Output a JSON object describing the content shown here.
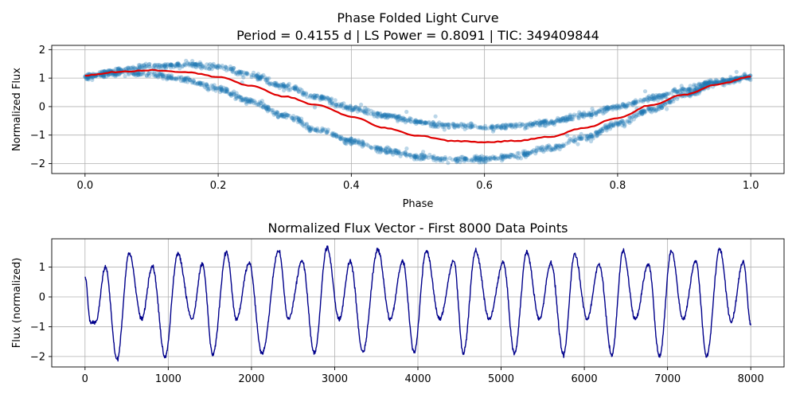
{
  "chart_data": [
    {
      "type": "scatter",
      "title": "Phase Folded Light Curve",
      "subtitle": "Period = 0.4155 d | LS Power = 0.8091 | TIC: 349409844",
      "xlabel": "Phase",
      "ylabel": "Normalized Flux",
      "xlim": [
        -0.05,
        1.05
      ],
      "ylim": [
        -2.35,
        2.15
      ],
      "xticks": [
        0.0,
        0.2,
        0.4,
        0.6,
        0.8,
        1.0
      ],
      "xtick_labels": [
        "0.0",
        "0.2",
        "0.4",
        "0.6",
        "0.8",
        "1.0"
      ],
      "yticks": [
        -2,
        -1,
        0,
        1,
        2
      ],
      "ytick_labels": [
        "−2",
        "−1",
        "0",
        "1",
        "2"
      ],
      "grid": true,
      "scatter_color": "#1f77b4",
      "binned_color": "#e00000",
      "branches": [
        {
          "x": [
            0.0,
            0.05,
            0.1,
            0.15,
            0.2,
            0.25,
            0.3,
            0.35,
            0.4,
            0.45,
            0.5,
            0.55,
            0.6,
            0.65,
            0.7,
            0.75,
            0.8,
            0.85,
            0.9,
            0.95,
            1.0
          ],
          "y": [
            1.05,
            1.28,
            1.42,
            1.48,
            1.4,
            1.12,
            0.72,
            0.32,
            -0.05,
            -0.32,
            -0.55,
            -0.67,
            -0.72,
            -0.7,
            -0.55,
            -0.3,
            0.0,
            0.3,
            0.6,
            0.88,
            1.05
          ]
        },
        {
          "x": [
            0.0,
            0.05,
            0.1,
            0.15,
            0.2,
            0.25,
            0.3,
            0.35,
            0.4,
            0.45,
            0.5,
            0.55,
            0.6,
            0.65,
            0.7,
            0.75,
            0.8,
            0.85,
            0.9,
            0.95,
            1.0
          ],
          "y": [
            1.05,
            1.18,
            1.15,
            0.95,
            0.62,
            0.18,
            -0.32,
            -0.82,
            -1.22,
            -1.52,
            -1.75,
            -1.87,
            -1.85,
            -1.7,
            -1.45,
            -1.08,
            -0.62,
            -0.1,
            0.4,
            0.82,
            1.05
          ]
        }
      ],
      "binned_curve": {
        "x": [
          0.0,
          0.05,
          0.1,
          0.15,
          0.2,
          0.25,
          0.3,
          0.35,
          0.4,
          0.45,
          0.5,
          0.55,
          0.6,
          0.65,
          0.7,
          0.75,
          0.8,
          0.85,
          0.9,
          0.95,
          1.0
        ],
        "y": [
          1.1,
          1.22,
          1.28,
          1.22,
          1.05,
          0.72,
          0.35,
          0.05,
          -0.35,
          -0.75,
          -1.02,
          -1.2,
          -1.25,
          -1.2,
          -1.05,
          -0.75,
          -0.4,
          0.05,
          0.42,
          0.78,
          1.05
        ]
      }
    },
    {
      "type": "line",
      "title": "Normalized Flux Vector - First 8000 Data Points",
      "xlabel": "",
      "ylabel": "Flux (normalized)",
      "xlim": [
        -400,
        8400
      ],
      "ylim": [
        -2.35,
        1.95
      ],
      "xticks": [
        0,
        1000,
        2000,
        3000,
        4000,
        5000,
        6000,
        7000,
        8000
      ],
      "xtick_labels": [
        "0",
        "1000",
        "2000",
        "3000",
        "4000",
        "5000",
        "6000",
        "7000",
        "8000"
      ],
      "yticks": [
        -2,
        -1,
        0,
        1
      ],
      "ytick_labels": [
        "−2",
        "−1",
        "0",
        "1"
      ],
      "grid": true,
      "line_color": "#00008b",
      "x": [
        0,
        65,
        126,
        246,
        384,
        531,
        682,
        808,
        962,
        1115,
        1286,
        1411,
        1535,
        1700,
        1819,
        1972,
        2127,
        2327,
        2443,
        2610,
        2756,
        2908,
        3054,
        3188,
        3337,
        3518,
        3668,
        3818,
        3954,
        4100,
        4261,
        4432,
        4546,
        4694,
        4857,
        5026,
        5160,
        5308,
        5459,
        5599,
        5749,
        5884,
        6033,
        6178,
        6331,
        6466,
        6611,
        6771,
        6903,
        7046,
        7187,
        7339,
        7471,
        7625,
        7765,
        7911,
        8000
      ],
      "y": [
        0.7,
        -0.85,
        -0.85,
        1.0,
        -2.1,
        1.45,
        -0.75,
        1.05,
        -2.0,
        1.45,
        -0.75,
        1.1,
        -1.95,
        1.5,
        -0.75,
        1.15,
        -1.9,
        1.55,
        -0.75,
        1.2,
        -1.9,
        1.65,
        -0.75,
        1.2,
        -1.85,
        1.6,
        -0.75,
        1.2,
        -1.85,
        1.55,
        -0.75,
        1.2,
        -1.9,
        1.55,
        -0.75,
        1.15,
        -1.9,
        1.5,
        -0.75,
        1.15,
        -1.95,
        1.45,
        -0.75,
        1.1,
        -1.95,
        1.55,
        -0.75,
        1.1,
        -2.0,
        1.55,
        -0.75,
        1.2,
        -2.0,
        1.6,
        -0.8,
        1.2,
        -0.9
      ]
    }
  ]
}
